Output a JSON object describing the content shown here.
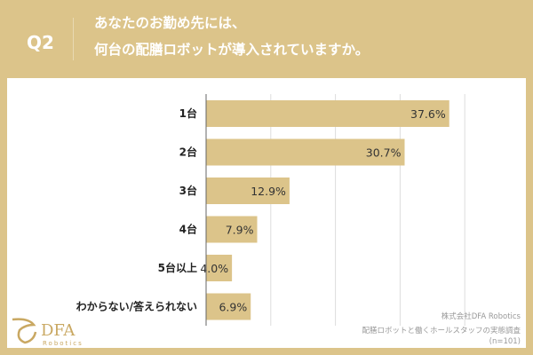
{
  "header": {
    "q": "Q2",
    "line1": "あなたのお勤め先には、",
    "line2": "何台の配膳ロボットが導入されていますか。"
  },
  "chart_data": {
    "type": "bar",
    "orientation": "horizontal",
    "categories": [
      "1台",
      "2台",
      "3台",
      "4台",
      "5台以上",
      "わからない/答えられない"
    ],
    "values": [
      37.6,
      30.7,
      12.9,
      7.9,
      4.0,
      6.9
    ],
    "labels": [
      "37.6%",
      "30.7%",
      "12.9%",
      "7.9%",
      "4.0%",
      "6.9%"
    ],
    "xlim": [
      0,
      50
    ],
    "grid": true,
    "color": "#dcc48a"
  },
  "source": {
    "line1": "株式会社DFA Robotics",
    "line2": "配膳ロボットと働くホールスタッフの実態調査",
    "line3": "(n=101)"
  },
  "logo": {
    "name": "DFA",
    "sub": "Robotics"
  }
}
